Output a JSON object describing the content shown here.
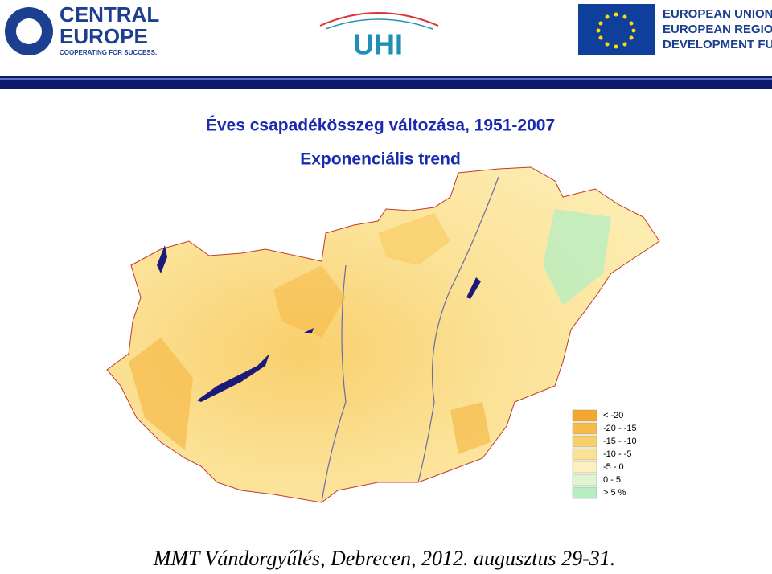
{
  "header": {
    "logo_left": {
      "line1": "CENTRAL",
      "line2": "EUROPE",
      "tagline": "COOPERATING FOR SUCCESS."
    },
    "logo_center": "UHI",
    "logo_right": {
      "line1": "EUROPEAN UNION",
      "line2": "EUROPEAN REGIONAL",
      "line3": "DEVELOPMENT FUND"
    }
  },
  "title": "Éves csapadékösszeg változása, 1951-2007",
  "subtitle": "Exponenciális trend",
  "legend": {
    "items": [
      {
        "label": "< -20",
        "color": "#f4a72c"
      },
      {
        "label": "-20 - -15",
        "color": "#f7bb4a"
      },
      {
        "label": "-15 - -10",
        "color": "#f9cf6c"
      },
      {
        "label": "-10 - -5",
        "color": "#fbe195"
      },
      {
        "label": "-5 - 0",
        "color": "#fdf0c0"
      },
      {
        "label": "0 - 5",
        "color": "#def5cf"
      },
      {
        "label": "> 5 %",
        "color": "#b8edc0"
      }
    ]
  },
  "footer": "MMT Vándorgyűlés, Debrecen, 2012. augusztus 29-31."
}
